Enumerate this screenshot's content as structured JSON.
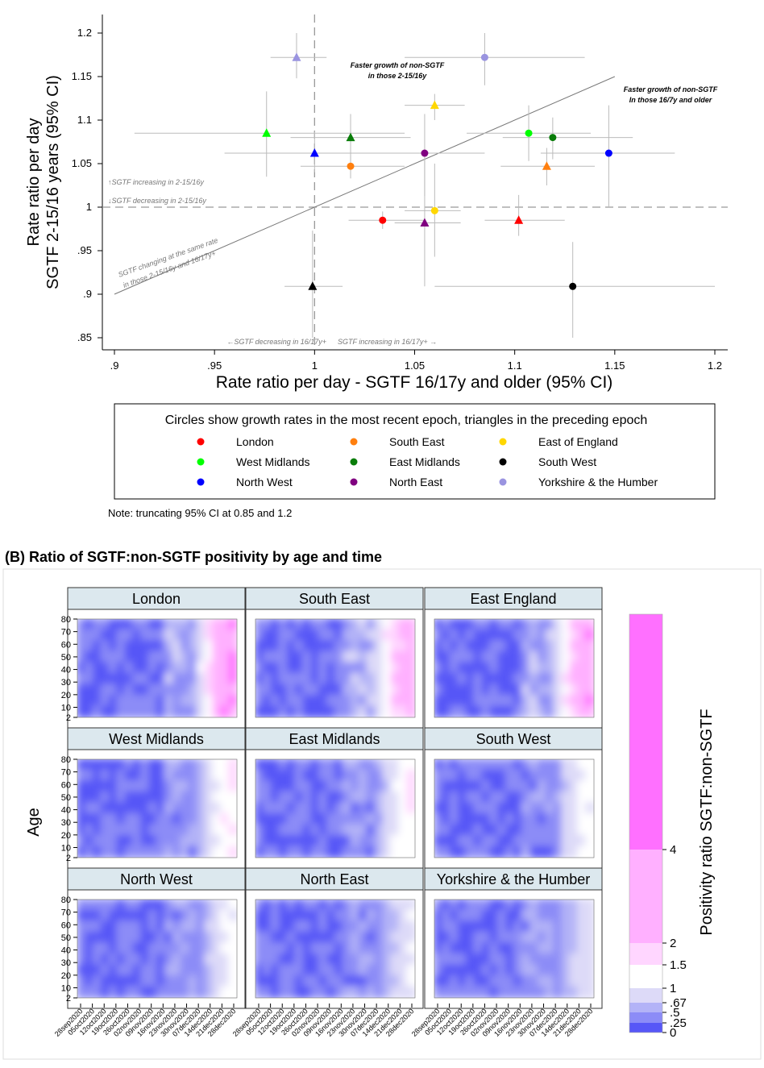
{
  "colors": {
    "London": "#ff0000",
    "South East": "#ff7f0e",
    "East of England": "#ffd700",
    "West Midlands": "#00ff00",
    "East Midlands": "#0a7d0a",
    "South West": "#000000",
    "North West": "#0000ff",
    "North East": "#800080",
    "Yorkshire & the Humber": "#9a94e0",
    "heat_scale": [
      "#5757f7",
      "#8c8cf7",
      "#b3b3f7",
      "#dddaf8",
      "#ffffff",
      "#ffd6ff",
      "#ffb0ff",
      "#ff70ff",
      "#ff00ff"
    ]
  },
  "chart_data": [
    {
      "type": "scatter",
      "xlabel": "Rate ratio per day - SGTF 16/17y and older (95% CI)",
      "ylabel_line1": "Rate ratio per day",
      "ylabel_line2": "SGTF 2-15/16 years (95% CI)",
      "xlim": [
        0.9,
        1.2
      ],
      "ylim": [
        0.85,
        1.2
      ],
      "xticks": [
        ".9",
        ".95",
        "1",
        "1.05",
        "1.1",
        "1.15",
        "1.2"
      ],
      "xtick_values": [
        0.9,
        0.95,
        1.0,
        1.05,
        1.1,
        1.15,
        1.2
      ],
      "yticks": [
        ".85",
        ".9",
        ".95",
        "1",
        "1.05",
        "1.1",
        "1.15",
        "1.2"
      ],
      "ytick_values": [
        0.85,
        0.9,
        0.95,
        1.0,
        1.05,
        1.1,
        1.15,
        1.2
      ],
      "legend_title": "Circles show growth rates in the most recent epoch, triangles in the preceding epoch",
      "legend_items": [
        "London",
        "South East",
        "East of England",
        "West Midlands",
        "East Midlands",
        "South West",
        "North West",
        "North East",
        "Yorkshire & the Humber"
      ],
      "annotations": {
        "top_mid_1": "Faster growth of non-SGTF",
        "top_mid_2": "in those 2-15/16y",
        "right_1": "Faster growth of non-SGTF",
        "right_2": "In those 16/7y and older",
        "sgtf_up": "↑SGTF increasing in 2-15/16y",
        "sgtf_down": "↓SGTF decreasing in 2-15/16y",
        "diag_1": "SGTF changing at the same rate",
        "diag_2": "in those 2-15/16y and 16/17y+",
        "bottom_left": "←SGTF decreasing in 16/17y+",
        "bottom_right": "SGTF increasing in 16/17y+ →"
      },
      "note": "Note: truncating 95% CI at 0.85 and 1.2",
      "points": [
        {
          "region": "London",
          "shape": "circle",
          "x": 1.034,
          "y": 0.985,
          "xlo": 1.017,
          "xhi": 1.055,
          "ylo": 0.975,
          "yhi": 0.995
        },
        {
          "region": "London",
          "shape": "triangle",
          "x": 1.102,
          "y": 0.985,
          "xlo": 1.085,
          "xhi": 1.125,
          "ylo": 0.967,
          "yhi": 1.014
        },
        {
          "region": "South East",
          "shape": "circle",
          "x": 1.018,
          "y": 1.047,
          "xlo": 0.993,
          "xhi": 1.045,
          "ylo": 1.033,
          "yhi": 1.06
        },
        {
          "region": "South East",
          "shape": "triangle",
          "x": 1.116,
          "y": 1.047,
          "xlo": 1.093,
          "xhi": 1.14,
          "ylo": 1.025,
          "yhi": 1.068
        },
        {
          "region": "East of England",
          "shape": "circle",
          "x": 1.06,
          "y": 0.996,
          "xlo": 1.045,
          "xhi": 1.073,
          "ylo": 0.943,
          "yhi": 1.05
        },
        {
          "region": "East of England",
          "shape": "triangle",
          "x": 1.06,
          "y": 1.117,
          "xlo": 1.045,
          "xhi": 1.075,
          "ylo": 1.1,
          "yhi": 1.13
        },
        {
          "region": "West Midlands",
          "shape": "circle",
          "x": 1.107,
          "y": 1.085,
          "xlo": 1.076,
          "xhi": 1.138,
          "ylo": 1.053,
          "yhi": 1.117
        },
        {
          "region": "West Midlands",
          "shape": "triangle",
          "x": 0.976,
          "y": 1.085,
          "xlo": 0.91,
          "xhi": 1.045,
          "ylo": 1.035,
          "yhi": 1.133
        },
        {
          "region": "East Midlands",
          "shape": "circle",
          "x": 1.119,
          "y": 1.08,
          "xlo": 1.094,
          "xhi": 1.159,
          "ylo": 1.055,
          "yhi": 1.103
        },
        {
          "region": "East Midlands",
          "shape": "triangle",
          "x": 1.018,
          "y": 1.08,
          "xlo": 0.988,
          "xhi": 1.048,
          "ylo": 1.053,
          "yhi": 1.107
        },
        {
          "region": "South West",
          "shape": "circle",
          "x": 1.129,
          "y": 0.909,
          "xlo": 1.06,
          "xhi": 1.2,
          "ylo": 0.85,
          "yhi": 0.96
        },
        {
          "region": "South West",
          "shape": "triangle",
          "x": 0.999,
          "y": 0.909,
          "xlo": 0.985,
          "xhi": 1.014,
          "ylo": 0.85,
          "yhi": 0.973
        },
        {
          "region": "North West",
          "shape": "circle",
          "x": 1.147,
          "y": 1.062,
          "xlo": 1.113,
          "xhi": 1.18,
          "ylo": 1.0,
          "yhi": 1.117
        },
        {
          "region": "North West",
          "shape": "triangle",
          "x": 1.0,
          "y": 1.062,
          "xlo": 0.955,
          "xhi": 1.065,
          "ylo": 1.04,
          "yhi": 1.087
        },
        {
          "region": "North East",
          "shape": "circle",
          "x": 1.055,
          "y": 1.062,
          "xlo": 1.026,
          "xhi": 1.085,
          "ylo": 1.013,
          "yhi": 1.107
        },
        {
          "region": "North East",
          "shape": "triangle",
          "x": 1.055,
          "y": 0.982,
          "xlo": 1.04,
          "xhi": 1.073,
          "ylo": 0.909,
          "yhi": 1.055
        },
        {
          "region": "Yorkshire & the Humber",
          "shape": "circle",
          "x": 1.085,
          "y": 1.172,
          "xlo": 1.045,
          "xhi": 1.135,
          "ylo": 1.14,
          "yhi": 1.2
        },
        {
          "region": "Yorkshire & the Humber",
          "shape": "triangle",
          "x": 0.991,
          "y": 1.172,
          "xlo": 0.978,
          "xhi": 1.006,
          "ylo": 1.148,
          "yhi": 1.2
        }
      ]
    },
    {
      "type": "heatmap",
      "title": "(B) Ratio of SGTF:non-SGTF positivity by age and time",
      "ylabel": "Age",
      "colorbar_label": "Positivity ratio SGTF:non-SGTF",
      "colorbar_ticks": [
        "0",
        ".25",
        ".5",
        ".67",
        "1",
        "1.5",
        "2",
        "4"
      ],
      "colorbar_tick_values": [
        0,
        0.25,
        0.5,
        0.67,
        1,
        1.5,
        2,
        4
      ],
      "age_ticks": [
        "2",
        "10",
        "20",
        "30",
        "40",
        "50",
        "60",
        "70",
        "80"
      ],
      "age_tick_values": [
        2,
        10,
        20,
        30,
        40,
        50,
        60,
        70,
        80
      ],
      "date_ticks": [
        "28sep2020",
        "05oct2020",
        "12oct2020",
        "19oct2020",
        "26oct2020",
        "02nov2020",
        "09nov2020",
        "16nov2020",
        "23nov2020",
        "30nov2020",
        "07dec2020",
        "14dec2020",
        "21dec2020",
        "28dec2020"
      ],
      "panels": [
        {
          "name": "London",
          "late_ratio": 4
        },
        {
          "name": "South East",
          "late_ratio": 2.8
        },
        {
          "name": "East England",
          "late_ratio": 3.2
        },
        {
          "name": "West Midlands",
          "late_ratio": 1.3
        },
        {
          "name": "East Midlands",
          "late_ratio": 1.2
        },
        {
          "name": "South West",
          "late_ratio": 0.9
        },
        {
          "name": "North West",
          "late_ratio": 0.8
        },
        {
          "name": "North East",
          "late_ratio": 0.6
        },
        {
          "name": "Yorkshire & the Humber",
          "late_ratio": 0.55
        }
      ]
    }
  ]
}
